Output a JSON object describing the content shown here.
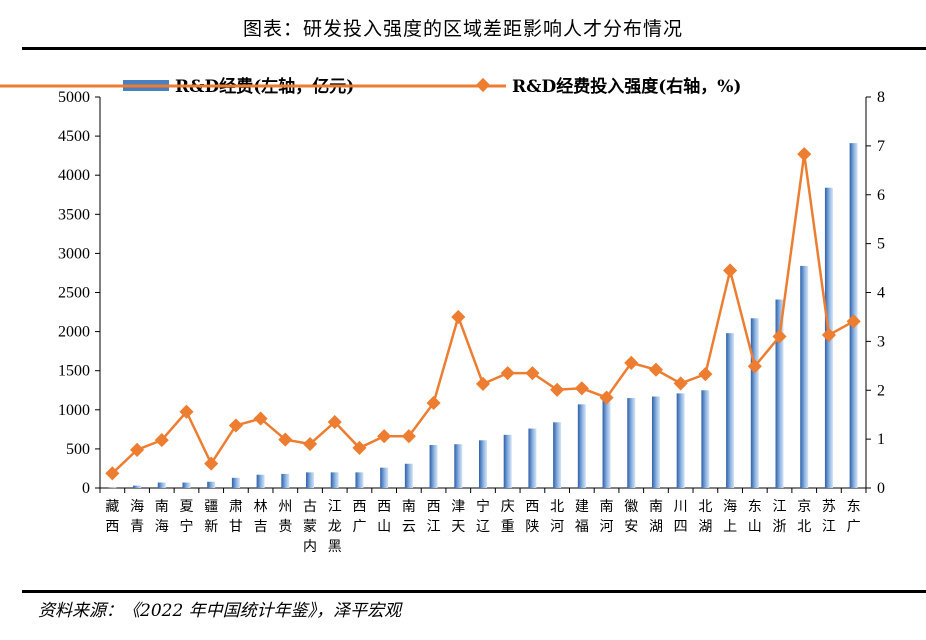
{
  "title": "图表：研发投入强度的区域差距影响人才分布情况",
  "source": "资料来源：《2022 年中国统计年鉴》，泽平宏观",
  "chart_data": {
    "type": "bar+line",
    "categories": [
      [
        "藏",
        "西"
      ],
      [
        "海",
        "青"
      ],
      [
        "南",
        "海"
      ],
      [
        "夏",
        "宁"
      ],
      [
        "疆",
        "新"
      ],
      [
        "肃",
        "甘"
      ],
      [
        "林",
        "吉"
      ],
      [
        "州",
        "贵"
      ],
      [
        "古",
        "蒙",
        "内"
      ],
      [
        "江",
        "龙",
        "黑"
      ],
      [
        "西",
        "广"
      ],
      [
        "西",
        "山"
      ],
      [
        "南",
        "云"
      ],
      [
        "西",
        "江"
      ],
      [
        "津",
        "天"
      ],
      [
        "宁",
        "辽"
      ],
      [
        "庆",
        "重"
      ],
      [
        "西",
        "陕"
      ],
      [
        "北",
        "河"
      ],
      [
        "建",
        "福"
      ],
      [
        "南",
        "河"
      ],
      [
        "徽",
        "安"
      ],
      [
        "南",
        "湖"
      ],
      [
        "川",
        "四"
      ],
      [
        "北",
        "湖"
      ],
      [
        "海",
        "上"
      ],
      [
        "东",
        "山"
      ],
      [
        "江",
        "浙"
      ],
      [
        "京",
        "北"
      ],
      [
        "苏",
        "江"
      ],
      [
        "东",
        "广"
      ]
    ],
    "series": [
      {
        "name": "R&D经费(左轴，亿元)",
        "type": "bar",
        "axis": "left",
        "color": "#4A7FC1",
        "values": [
          5,
          30,
          70,
          70,
          80,
          130,
          170,
          180,
          200,
          200,
          200,
          260,
          310,
          550,
          560,
          610,
          680,
          760,
          840,
          1070,
          1140,
          1150,
          1170,
          1210,
          1250,
          1980,
          2170,
          2410,
          2840,
          3840,
          4410
        ]
      },
      {
        "name": "R&D经费投入强度(右轴，%)",
        "type": "line",
        "axis": "right",
        "color": "#ED7D31",
        "values": [
          0.3,
          0.78,
          0.98,
          1.56,
          0.5,
          1.28,
          1.42,
          0.99,
          0.9,
          1.35,
          0.82,
          1.06,
          1.06,
          1.74,
          3.5,
          2.13,
          2.35,
          2.35,
          2.01,
          2.04,
          1.85,
          2.56,
          2.42,
          2.14,
          2.33,
          4.45,
          2.49,
          3.1,
          6.83,
          3.13,
          3.41
        ]
      }
    ],
    "y_left": {
      "min": 0,
      "max": 5000,
      "step": 500,
      "ticks": [
        "0",
        "500",
        "1000",
        "1500",
        "2000",
        "2500",
        "3000",
        "3500",
        "4000",
        "4500",
        "5000"
      ]
    },
    "y_right": {
      "min": 0,
      "max": 8,
      "step": 1,
      "ticks": [
        "0",
        "1",
        "2",
        "3",
        "4",
        "5",
        "6",
        "7",
        "8"
      ]
    },
    "grid": false,
    "legend_position": "top"
  }
}
